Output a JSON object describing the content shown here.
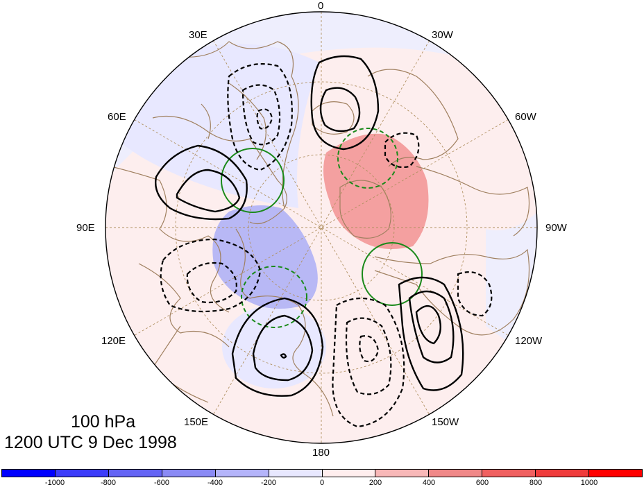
{
  "map": {
    "projection": "north-polar-stereographic",
    "longitude_labels": [
      "0",
      "30W",
      "60W",
      "90W",
      "120W",
      "150W",
      "180",
      "150E",
      "120E",
      "90E",
      "60E",
      "30E"
    ],
    "contour_styles": {
      "positive": "solid black",
      "negative": "dashed black",
      "green": "green solid / green dashed"
    },
    "shading_colors": {
      "positive": "#f08080",
      "negative": "#9090f0",
      "land_outline": "#a08060"
    }
  },
  "title": {
    "level": "100 hPa",
    "time": "1200 UTC 9 Dec 1998"
  },
  "colorbar": {
    "colors": [
      "#0000ff",
      "#3c3cfa",
      "#6464f5",
      "#8a8af5",
      "#b4b4fa",
      "#e8e8ff",
      "#ffeeee",
      "#f8b8b8",
      "#f08888",
      "#f06060",
      "#f03c3c",
      "#ff0000"
    ],
    "tick_labels": [
      "-1000",
      "-800",
      "-600",
      "-400",
      "-200",
      "0",
      "200",
      "400",
      "600",
      "800",
      "1000"
    ]
  }
}
